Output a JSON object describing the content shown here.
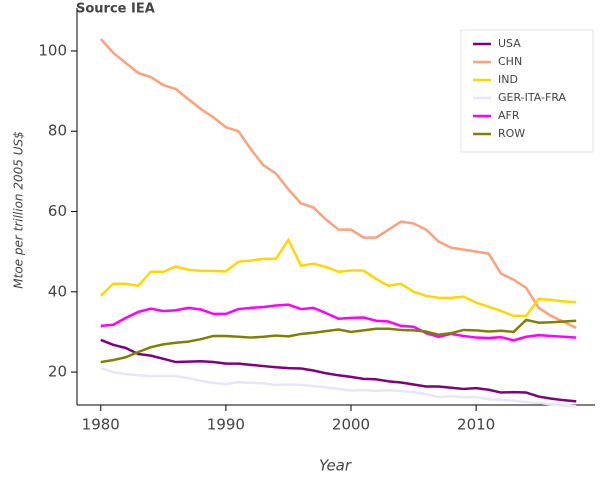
{
  "chart_data": {
    "type": "line",
    "title": "Source IEA",
    "xlabel": "Year",
    "ylabel": "Mtoe per trillion 2005 US$",
    "x": [
      1980,
      1981,
      1982,
      1983,
      1984,
      1985,
      1986,
      1987,
      1988,
      1989,
      1990,
      1991,
      1992,
      1993,
      1994,
      1995,
      1996,
      1997,
      1998,
      1999,
      2000,
      2001,
      2002,
      2003,
      2004,
      2005,
      2006,
      2007,
      2008,
      2009,
      2010,
      2011,
      2012,
      2013,
      2014,
      2015,
      2016,
      2017,
      2018
    ],
    "xlim": [
      1978.1,
      2019.5
    ],
    "xticks": [
      1980,
      1990,
      2000,
      2010
    ],
    "ylim": [
      11.8,
      110.7
    ],
    "yticks": [
      20,
      40,
      60,
      80,
      100
    ],
    "legend": "top_right",
    "series": [
      {
        "name": "USA",
        "color": "#800080",
        "values": [
          28,
          26.8,
          26,
          24.5,
          24.1,
          23.3,
          22.5,
          22.6,
          22.7,
          22.5,
          22.1,
          22.1,
          21.8,
          21.5,
          21.2,
          21,
          20.9,
          20.4,
          19.7,
          19.2,
          18.8,
          18.3,
          18.2,
          17.7,
          17.4,
          16.9,
          16.4,
          16.4,
          16.1,
          15.8,
          16,
          15.6,
          14.9,
          15,
          14.9,
          13.9,
          13.4,
          13,
          12.7
        ]
      },
      {
        "name": "CHN",
        "color": "#ffa07a",
        "values": [
          103,
          99.5,
          97,
          94.5,
          93.5,
          91.5,
          90.5,
          88,
          85.5,
          83.5,
          81,
          80,
          75.5,
          71.5,
          69.5,
          65.5,
          62,
          61,
          58,
          55.5,
          55.5,
          53.5,
          53.5,
          55.5,
          57.5,
          57,
          55.5,
          52.5,
          51,
          50.5,
          50,
          49.5,
          44.5,
          43,
          41,
          36,
          34,
          32.5,
          31
        ]
      },
      {
        "name": "IND",
        "color": "#ffd700",
        "values": [
          39,
          42,
          42,
          41.5,
          45,
          45,
          46.3,
          45.5,
          45.2,
          45.2,
          45.1,
          47.5,
          47.8,
          48.2,
          48.2,
          53,
          46.5,
          47,
          46.2,
          45,
          45.3,
          45.3,
          43.2,
          41.5,
          42,
          40,
          39,
          38.5,
          38.5,
          38.8,
          37.3,
          36.3,
          35.2,
          34,
          34,
          38.2,
          38,
          37.6,
          37.4
        ]
      },
      {
        "name": "GER-ITA-FRA",
        "color": "#e6e6fa",
        "values": [
          21,
          20,
          19.5,
          19.2,
          19,
          19,
          19,
          18.5,
          17.8,
          17.3,
          17,
          17.5,
          17.3,
          17.2,
          16.8,
          16.9,
          16.8,
          16.5,
          16.2,
          15.8,
          15.4,
          15.5,
          15.3,
          15.5,
          15.3,
          15,
          14.5,
          13.8,
          14,
          13.7,
          13.8,
          13.2,
          13.1,
          12.9,
          12.5,
          12.3,
          12,
          11.7,
          11.5
        ]
      },
      {
        "name": "AFR",
        "color": "#ff00ff",
        "values": [
          31.5,
          31.8,
          33.5,
          35,
          35.8,
          35.2,
          35.4,
          36,
          35.6,
          34.5,
          34.5,
          35.7,
          36,
          36.2,
          36.6,
          36.8,
          35.7,
          36,
          34.7,
          33.3,
          33.5,
          33.6,
          32.8,
          32.6,
          31.5,
          31.3,
          29.7,
          28.8,
          29.5,
          29,
          28.6,
          28.5,
          28.7,
          27.9,
          28.8,
          29.2,
          29,
          28.8,
          28.6
        ]
      },
      {
        "name": "ROW",
        "color": "#808000",
        "values": [
          22.5,
          23,
          23.7,
          25,
          26.2,
          26.9,
          27.3,
          27.6,
          28.2,
          29,
          29,
          28.8,
          28.6,
          28.8,
          29.1,
          28.9,
          29.5,
          29.8,
          30.2,
          30.6,
          30,
          30.4,
          30.8,
          30.8,
          30.5,
          30.4,
          30.1,
          29.3,
          29.7,
          30.5,
          30.4,
          30.1,
          30.3,
          30,
          33,
          32.3,
          32.4,
          32.6,
          32.8
        ]
      }
    ]
  }
}
